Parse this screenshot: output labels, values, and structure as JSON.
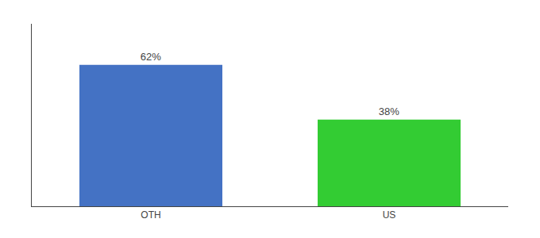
{
  "chart_data": {
    "type": "bar",
    "categories": [
      "OTH",
      "US"
    ],
    "values": [
      62,
      38
    ],
    "value_labels": [
      "62%",
      "38%"
    ],
    "colors": [
      "#4472c4",
      "#33cc33"
    ],
    "ylim": [
      0,
      80
    ],
    "data_labels": true,
    "tick_labels": "x",
    "grid": false
  }
}
